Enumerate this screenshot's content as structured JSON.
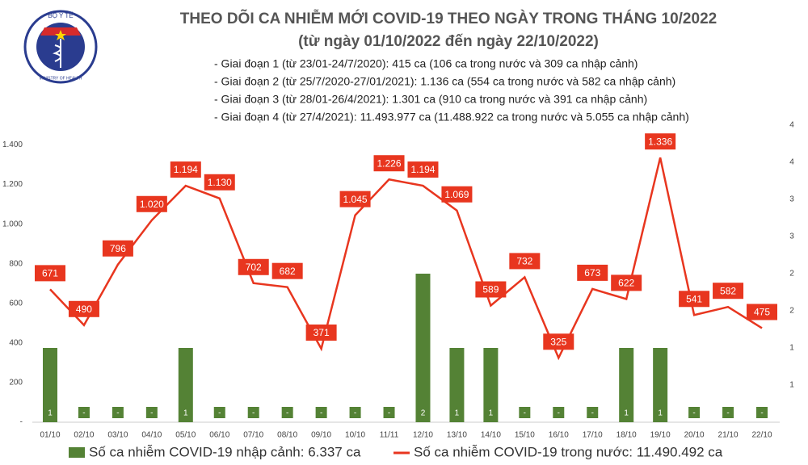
{
  "header": {
    "logo_top": "BỘ Y TẾ",
    "logo_bottom": "MINISTRY OF HEALTH",
    "title": "THEO DÕI CA NHIỄM MỚI COVID-19 THEO NGÀY TRONG THÁNG 10/2022",
    "subtitle": "(từ ngày 01/10/2022 đến ngày 22/10/2022)",
    "notes": [
      "- Giai đoạn 1 (từ 23/01-24/7/2020): 415 ca (106 ca trong nước và 309 ca nhập cảnh)",
      "- Giai đoạn 2 (từ 25/7/2020-27/01/2021): 1.136 ca (554 ca trong nước và 582 ca nhập cảnh)",
      "- Giai đoạn 3 (từ 28/01-26/4/2021): 1.301 ca (910 ca trong nước và 391 ca nhập cảnh)",
      "- Giai đoạn 4 (từ 27/4/2021): 11.493.977 ca (11.488.922 ca trong nước và 5.055 ca nhập cảnh)"
    ]
  },
  "chart_data": {
    "type": "bar-line",
    "categories": [
      "01/10",
      "02/10",
      "03/10",
      "04/10",
      "05/10",
      "06/10",
      "07/10",
      "08/10",
      "09/10",
      "10/10",
      "11/11",
      "12/10",
      "13/10",
      "14/10",
      "15/10",
      "16/10",
      "17/10",
      "18/10",
      "19/10",
      "20/10",
      "21/10",
      "22/10"
    ],
    "series": [
      {
        "name": "Số ca nhiễm COVID-19 nhập cảnh: 6.337 ca",
        "color": "#548235",
        "axis": "y2",
        "kind": "bar",
        "values": [
          1,
          0,
          0,
          0,
          1,
          0,
          0,
          0,
          0,
          0,
          0,
          2,
          1,
          1,
          0,
          0,
          0,
          1,
          1,
          0,
          0,
          0
        ],
        "value_labels": [
          "1",
          "-",
          "-",
          "-",
          "1",
          "-",
          "-",
          "-",
          "-",
          "-",
          "-",
          "2",
          "1",
          "1",
          "-",
          "-",
          "-",
          "1",
          "1",
          "-",
          "-",
          "-"
        ]
      },
      {
        "name": "Số ca nhiễm COVID-19 trong nước: 11.490.492 ca",
        "color": "#e8361f",
        "kind": "line",
        "values": [
          671,
          490,
          796,
          1020,
          1194,
          1130,
          702,
          682,
          371,
          1045,
          1226,
          1194,
          1069,
          589,
          732,
          325,
          673,
          622,
          1336,
          541,
          582,
          475
        ],
        "value_labels": [
          "671",
          "490",
          "796",
          "1.020",
          "1.194",
          "1.130",
          "702",
          "682",
          "371",
          "1.045",
          "1.226",
          "1.194",
          "1.069",
          "589",
          "732",
          "325",
          "673",
          "622",
          "1.336",
          "541",
          "582",
          "475"
        ]
      }
    ],
    "ylim": [
      0,
      1500
    ],
    "yticks": [
      {
        "value": 0,
        "label": "-"
      },
      200,
      400,
      600,
      800,
      {
        "value": 1000,
        "label": "1.000"
      },
      {
        "value": 1200,
        "label": "1.200"
      },
      {
        "value": 1400,
        "label": "1.400"
      }
    ],
    "y2lim": [
      0,
      4
    ],
    "y2ticks": [
      {
        "value": 0.5,
        "label": "1"
      },
      {
        "value": 1,
        "label": "1"
      },
      {
        "value": 1.5,
        "label": "2"
      },
      {
        "value": 2,
        "label": "2"
      },
      {
        "value": 2.5,
        "label": "3"
      },
      {
        "value": 3,
        "label": "3"
      },
      {
        "value": 3.5,
        "label": "4"
      },
      {
        "value": 4,
        "label": "4"
      }
    ]
  }
}
